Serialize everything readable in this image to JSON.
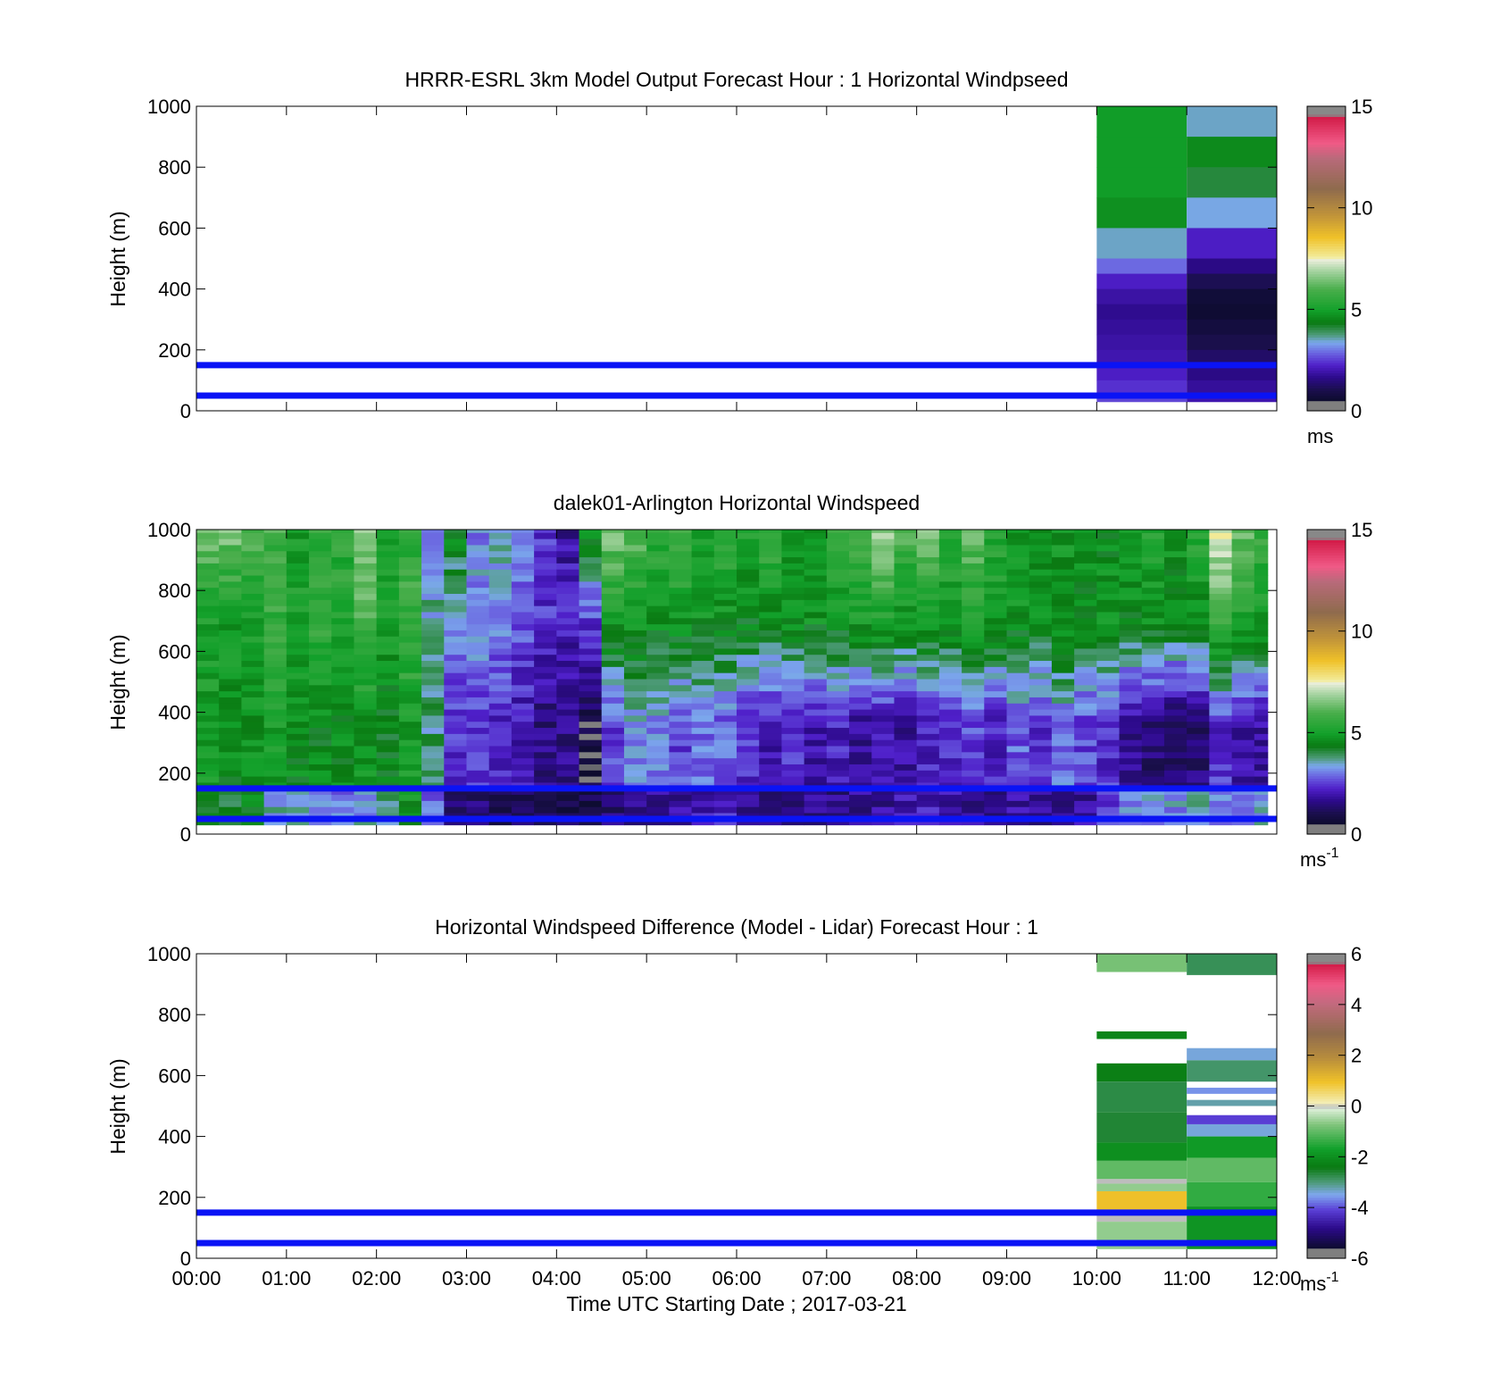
{
  "chart_data": [
    {
      "type": "heatmap",
      "title": "HRRR-ESRL 3km Model Output   Forecast Hour : 1 Horizontal Windpseed",
      "xlabel": "",
      "ylabel": "Height (m)",
      "xlim": [
        0,
        12
      ],
      "ylim": [
        0,
        1000
      ],
      "yticks": [
        0,
        200,
        400,
        600,
        800,
        1000
      ],
      "xticks": [
        "00:00",
        "01:00",
        "02:00",
        "03:00",
        "04:00",
        "05:00",
        "06:00",
        "07:00",
        "08:00",
        "09:00",
        "10:00",
        "11:00",
        "12:00"
      ],
      "show_xticklabels": false,
      "colorbar": {
        "range": [
          0,
          15
        ],
        "ticks": [
          0,
          5,
          10,
          15
        ],
        "unit": "ms",
        "unit_sup": ""
      },
      "reference_lines_m": [
        50,
        150
      ],
      "model_columns": [
        {
          "time_start": 10,
          "time_end": 11,
          "levels_m": [
            1000,
            900,
            800,
            700,
            600,
            500,
            450,
            400,
            350,
            300,
            250,
            200,
            150,
            100,
            50,
            30
          ],
          "values": [
            4.9,
            4.9,
            4.9,
            4.7,
            3.5,
            2.9,
            2.2,
            1.9,
            1.7,
            1.8,
            1.9,
            2.0,
            2.2,
            2.4,
            2.6
          ]
        },
        {
          "time_start": 11,
          "time_end": 12,
          "levels_m": [
            1000,
            900,
            800,
            700,
            600,
            500,
            450,
            400,
            350,
            300,
            250,
            200,
            150,
            100,
            50,
            30
          ],
          "values": [
            3.5,
            4.6,
            4.1,
            3.4,
            2.2,
            1.6,
            1.1,
            0.7,
            0.6,
            0.8,
            1.0,
            1.3,
            1.6,
            1.8,
            2.0
          ]
        }
      ]
    },
    {
      "type": "heatmap",
      "title": "dalek01-Arlington  Horizontal Windspeed",
      "xlabel": "",
      "ylabel": "Height (m)",
      "xlim": [
        0,
        12
      ],
      "ylim": [
        0,
        1000
      ],
      "yticks": [
        0,
        200,
        400,
        600,
        800,
        1000
      ],
      "xticks": [
        "00:00",
        "01:00",
        "02:00",
        "03:00",
        "04:00",
        "05:00",
        "06:00",
        "07:00",
        "08:00",
        "09:00",
        "10:00",
        "11:00",
        "12:00"
      ],
      "show_xticklabels": false,
      "colorbar": {
        "range": [
          0,
          15
        ],
        "ticks": [
          0,
          5,
          10,
          15
        ],
        "unit": "ms",
        "unit_sup": "-1"
      },
      "reference_lines_m": [
        50,
        150
      ],
      "data_time_end": 11.9,
      "lidar_profiles": [
        {
          "t": 0.0,
          "top": 6.5,
          "mid": 5.0,
          "low": 5.0,
          "bl": 4.5
        },
        {
          "t": 0.25,
          "top": 6.5,
          "mid": 5.0,
          "low": 4.6,
          "bl": 4.2
        },
        {
          "t": 0.5,
          "top": 6.0,
          "mid": 5.2,
          "low": 4.8,
          "bl": 4.5
        },
        {
          "t": 0.75,
          "top": 5.8,
          "mid": 5.6,
          "low": 5.0,
          "bl": 3.5
        },
        {
          "t": 1.0,
          "top": 5.0,
          "mid": 5.2,
          "low": 4.6,
          "bl": 3.6
        },
        {
          "t": 1.25,
          "top": 5.5,
          "mid": 5.6,
          "low": 4.5,
          "bl": 3.2
        },
        {
          "t": 1.5,
          "top": 5.4,
          "mid": 5.4,
          "low": 4.6,
          "bl": 3.0
        },
        {
          "t": 1.75,
          "top": 6.6,
          "mid": 6.0,
          "low": 4.8,
          "bl": 3.4
        },
        {
          "t": 2.0,
          "top": 5.2,
          "mid": 5.0,
          "low": 4.5,
          "bl": 3.8
        },
        {
          "t": 2.25,
          "top": 5.5,
          "mid": 5.8,
          "low": 5.0,
          "bl": 4.8
        },
        {
          "t": 2.5,
          "top": 3.2,
          "mid": 3.6,
          "low": 3.8,
          "bl": 2.8
        },
        {
          "t": 2.75,
          "top": 4.6,
          "mid": 3.2,
          "low": 2.4,
          "bl": 1.5
        },
        {
          "t": 3.0,
          "top": 3.0,
          "mid": 3.4,
          "low": 2.5,
          "bl": 1.4
        },
        {
          "t": 3.25,
          "top": 3.6,
          "mid": 3.2,
          "low": 2.2,
          "bl": 1.2
        },
        {
          "t": 3.5,
          "top": 3.3,
          "mid": 2.8,
          "low": 2.0,
          "bl": 1.2
        },
        {
          "t": 3.75,
          "top": 2.4,
          "mid": 2.4,
          "low": 1.5,
          "bl": 1.3
        },
        {
          "t": 4.0,
          "top": 1.8,
          "mid": 2.2,
          "low": 1.6,
          "bl": 1.1
        },
        {
          "t": 4.25,
          "top": 4.8,
          "mid": 2.6,
          "low": 0.8,
          "bl": 0.9
        },
        {
          "t": 4.5,
          "top": 6.6,
          "mid": 5.0,
          "low": 2.6,
          "bl": 1.4
        },
        {
          "t": 4.75,
          "top": 6.2,
          "mid": 5.0,
          "low": 3.2,
          "bl": 1.6
        },
        {
          "t": 5.0,
          "top": 5.6,
          "mid": 4.8,
          "low": 3.0,
          "bl": 1.8
        },
        {
          "t": 5.25,
          "top": 5.6,
          "mid": 5.0,
          "low": 2.6,
          "bl": 1.8
        },
        {
          "t": 5.5,
          "top": 5.2,
          "mid": 4.8,
          "low": 3.0,
          "bl": 2.0
        },
        {
          "t": 5.75,
          "top": 5.6,
          "mid": 4.8,
          "low": 2.8,
          "bl": 2.2
        },
        {
          "t": 6.0,
          "top": 5.2,
          "mid": 4.6,
          "low": 2.4,
          "bl": 1.8
        },
        {
          "t": 6.25,
          "top": 5.8,
          "mid": 4.6,
          "low": 2.0,
          "bl": 1.6
        },
        {
          "t": 6.5,
          "top": 5.0,
          "mid": 4.7,
          "low": 2.3,
          "bl": 1.6
        },
        {
          "t": 6.75,
          "top": 5.0,
          "mid": 4.8,
          "low": 2.0,
          "bl": 1.6
        },
        {
          "t": 7.0,
          "top": 5.6,
          "mid": 4.8,
          "low": 2.2,
          "bl": 1.6
        },
        {
          "t": 7.25,
          "top": 6.2,
          "mid": 5.0,
          "low": 1.8,
          "bl": 1.8
        },
        {
          "t": 7.5,
          "top": 6.8,
          "mid": 5.2,
          "low": 2.0,
          "bl": 1.8
        },
        {
          "t": 7.75,
          "top": 6.0,
          "mid": 4.8,
          "low": 1.8,
          "bl": 2.0
        },
        {
          "t": 8.0,
          "top": 6.4,
          "mid": 5.0,
          "low": 2.2,
          "bl": 2.2
        },
        {
          "t": 8.25,
          "top": 5.6,
          "mid": 4.8,
          "low": 2.4,
          "bl": 2.0
        },
        {
          "t": 8.5,
          "top": 6.4,
          "mid": 5.2,
          "low": 2.6,
          "bl": 1.8
        },
        {
          "t": 8.75,
          "top": 5.4,
          "mid": 5.0,
          "low": 2.2,
          "bl": 1.8
        },
        {
          "t": 9.0,
          "top": 4.8,
          "mid": 4.8,
          "low": 2.8,
          "bl": 1.8
        },
        {
          "t": 9.25,
          "top": 4.6,
          "mid": 4.6,
          "low": 2.4,
          "bl": 1.8
        },
        {
          "t": 9.5,
          "top": 4.8,
          "mid": 4.8,
          "low": 3.0,
          "bl": 1.6
        },
        {
          "t": 9.75,
          "top": 4.6,
          "mid": 4.6,
          "low": 2.6,
          "bl": 1.8
        },
        {
          "t": 10.0,
          "top": 4.6,
          "mid": 4.8,
          "low": 2.4,
          "bl": 2.6
        },
        {
          "t": 10.25,
          "top": 5.0,
          "mid": 4.6,
          "low": 1.6,
          "bl": 3.0
        },
        {
          "t": 10.5,
          "top": 5.2,
          "mid": 4.8,
          "low": 1.4,
          "bl": 3.2
        },
        {
          "t": 10.75,
          "top": 4.8,
          "mid": 4.6,
          "low": 1.2,
          "bl": 3.2
        },
        {
          "t": 11.0,
          "top": 5.4,
          "mid": 4.6,
          "low": 1.4,
          "bl": 3.4
        },
        {
          "t": 11.25,
          "top": 7.4,
          "mid": 5.8,
          "low": 2.4,
          "bl": 3.0
        },
        {
          "t": 11.5,
          "top": 6.4,
          "mid": 5.2,
          "low": 2.0,
          "bl": 2.8
        },
        {
          "t": 11.75,
          "top": 5.8,
          "mid": 5.0,
          "low": 1.8,
          "bl": 3.4
        }
      ]
    },
    {
      "type": "heatmap",
      "title": "Horizontal Windspeed Difference (Model - Lidar) Forecast Hour : 1",
      "xlabel": "Time UTC  Starting Date ; 2017-03-21",
      "ylabel": "Height (m)",
      "xlim": [
        0,
        12
      ],
      "ylim": [
        0,
        1000
      ],
      "yticks": [
        0,
        200,
        400,
        600,
        800,
        1000
      ],
      "xticks": [
        "00:00",
        "01:00",
        "02:00",
        "03:00",
        "04:00",
        "05:00",
        "06:00",
        "07:00",
        "08:00",
        "09:00",
        "10:00",
        "11:00",
        "12:00"
      ],
      "show_xticklabels": true,
      "colorbar": {
        "range": [
          -6,
          6
        ],
        "ticks": [
          -6,
          -4,
          -2,
          0,
          2,
          4,
          6
        ],
        "unit": "ms",
        "unit_sup": "-1"
      },
      "reference_lines_m": [
        50,
        150
      ],
      "difference_bands": [
        {
          "time_start": 10,
          "time_end": 11,
          "y0": 940,
          "y1": 1000,
          "value": -0.8
        },
        {
          "time_start": 10,
          "time_end": 11,
          "y0": 720,
          "y1": 745,
          "value": -2.2
        },
        {
          "time_start": 10,
          "time_end": 11,
          "y0": 580,
          "y1": 640,
          "value": -2.3
        },
        {
          "time_start": 10,
          "time_end": 11,
          "y0": 480,
          "y1": 580,
          "value": -2.7
        },
        {
          "time_start": 10,
          "time_end": 11,
          "y0": 380,
          "y1": 480,
          "value": -2.6
        },
        {
          "time_start": 10,
          "time_end": 11,
          "y0": 320,
          "y1": 380,
          "value": -2.0
        },
        {
          "time_start": 10,
          "time_end": 11,
          "y0": 260,
          "y1": 320,
          "value": -1.0
        },
        {
          "time_start": 10,
          "time_end": 11,
          "y0": 245,
          "y1": 260,
          "value": 0.0
        },
        {
          "time_start": 10,
          "time_end": 11,
          "y0": 220,
          "y1": 245,
          "value": -0.6
        },
        {
          "time_start": 10,
          "time_end": 11,
          "y0": 160,
          "y1": 220,
          "value": 1.0
        },
        {
          "time_start": 10,
          "time_end": 11,
          "y0": 120,
          "y1": 160,
          "value": 0.0
        },
        {
          "time_start": 10,
          "time_end": 11,
          "y0": 30,
          "y1": 120,
          "value": -0.6
        },
        {
          "time_start": 11,
          "time_end": 12,
          "y0": 930,
          "y1": 1000,
          "value": -2.8
        },
        {
          "time_start": 11,
          "time_end": 12,
          "y0": 650,
          "y1": 690,
          "value": -3.4
        },
        {
          "time_start": 11,
          "time_end": 12,
          "y0": 580,
          "y1": 650,
          "value": -2.9
        },
        {
          "time_start": 11,
          "time_end": 12,
          "y0": 540,
          "y1": 560,
          "value": -3.6
        },
        {
          "time_start": 11,
          "time_end": 12,
          "y0": 500,
          "y1": 520,
          "value": -3.2
        },
        {
          "time_start": 11,
          "time_end": 12,
          "y0": 440,
          "y1": 470,
          "value": -4.1
        },
        {
          "time_start": 11,
          "time_end": 12,
          "y0": 400,
          "y1": 440,
          "value": -3.4
        },
        {
          "time_start": 11,
          "time_end": 12,
          "y0": 330,
          "y1": 400,
          "value": -1.8
        },
        {
          "time_start": 11,
          "time_end": 12,
          "y0": 250,
          "y1": 330,
          "value": -1.0
        },
        {
          "time_start": 11,
          "time_end": 12,
          "y0": 170,
          "y1": 250,
          "value": -1.4
        },
        {
          "time_start": 11,
          "time_end": 12,
          "y0": 30,
          "y1": 170,
          "value": -1.9
        }
      ]
    }
  ]
}
